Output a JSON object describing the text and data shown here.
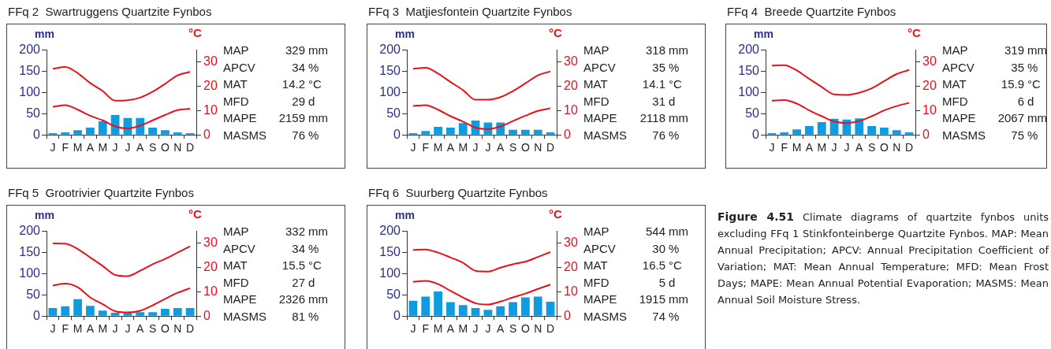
{
  "chart_data": [
    {
      "type": "bar",
      "title": "FFq 2  Swartruggens Quartzite Fynbos",
      "ylabel": "mm",
      "y2label": "°C",
      "categories": [
        "J",
        "F",
        "M",
        "A",
        "M",
        "J",
        "J",
        "A",
        "S",
        "O",
        "N",
        "D"
      ],
      "ylim": [
        0,
        200
      ],
      "yticks": [
        0,
        50,
        100,
        150,
        200
      ],
      "y2lim": [
        0,
        35
      ],
      "y2ticks": [
        0,
        10,
        20,
        30
      ],
      "legend": false,
      "grid": false,
      "series": [
        {
          "type": "bar",
          "color": "#0f9be0",
          "values": [
            4,
            6,
            11,
            17,
            32,
            47,
            40,
            40,
            17,
            11,
            6,
            4
          ]
        },
        {
          "type": "line",
          "axis": "y2",
          "color": "#e8101a",
          "values": [
            27.3,
            28.0,
            25.5,
            21.4,
            18.1,
            14.1,
            14.3,
            15.4,
            17.8,
            21.1,
            24.6,
            26.0
          ]
        },
        {
          "type": "line",
          "axis": "y2",
          "color": "#e8101a",
          "values": [
            11.5,
            12.3,
            10.4,
            7.9,
            6.0,
            3.5,
            2.7,
            3.8,
            6.0,
            8.2,
            10.2,
            10.8
          ]
        }
      ],
      "annotations": [
        "MAP 329 mm",
        "APCV 34 %",
        "MAT 14.2 °C",
        "MFD 29 d",
        "MAPE 2159 mm",
        "MASMS 76 %"
      ]
    },
    {
      "type": "bar",
      "title": "FFq 3  Matjiesfontein Quartzite Fynbos",
      "ylabel": "mm",
      "y2label": "°C",
      "categories": [
        "J",
        "F",
        "M",
        "A",
        "M",
        "J",
        "J",
        "A",
        "S",
        "O",
        "N",
        "D"
      ],
      "ylim": [
        0,
        200
      ],
      "yticks": [
        0,
        50,
        100,
        150,
        200
      ],
      "y2lim": [
        0,
        35
      ],
      "y2ticks": [
        0,
        10,
        20,
        30
      ],
      "legend": false,
      "grid": false,
      "series": [
        {
          "type": "bar",
          "color": "#0f9be0",
          "values": [
            4,
            9,
            19,
            17,
            28,
            34,
            29,
            29,
            12,
            12,
            12,
            6
          ]
        },
        {
          "type": "line",
          "axis": "y2",
          "color": "#e8101a",
          "values": [
            27.3,
            27.7,
            25.3,
            21.8,
            18.5,
            14.5,
            14.5,
            15.6,
            18.1,
            21.3,
            24.6,
            26.2
          ]
        },
        {
          "type": "line",
          "axis": "y2",
          "color": "#e8101a",
          "values": [
            11.9,
            12.3,
            10.4,
            7.7,
            5.5,
            3.0,
            2.4,
            3.5,
            5.7,
            7.9,
            9.9,
            11.0
          ]
        }
      ],
      "annotations": [
        "MAP 318 mm",
        "APCV 35 %",
        "MAT 14.1 °C",
        "MFD 31 d",
        "MAPE 2118 mm",
        "MASMS 76 %"
      ]
    },
    {
      "type": "bar",
      "title": "FFq 4  Breede Quartzite Fynbos",
      "ylabel": "mm",
      "y2label": "°C",
      "categories": [
        "J",
        "F",
        "M",
        "A",
        "M",
        "J",
        "J",
        "A",
        "S",
        "O",
        "N",
        "D"
      ],
      "ylim": [
        0,
        200
      ],
      "yticks": [
        0,
        50,
        100,
        150,
        200
      ],
      "y2lim": [
        0,
        35
      ],
      "y2ticks": [
        0,
        10,
        20,
        30
      ],
      "legend": false,
      "grid": false,
      "series": [
        {
          "type": "bar",
          "color": "#0f9be0",
          "values": [
            4,
            6,
            13,
            21,
            30,
            38,
            36,
            39,
            21,
            17,
            11,
            6
          ]
        },
        {
          "type": "line",
          "axis": "y2",
          "color": "#e8101a",
          "values": [
            28.6,
            28.8,
            26.6,
            23.1,
            19.8,
            16.7,
            16.5,
            17.4,
            19.2,
            22.2,
            25.1,
            26.8
          ]
        },
        {
          "type": "line",
          "axis": "y2",
          "color": "#e8101a",
          "values": [
            14.1,
            14.4,
            12.9,
            10.1,
            7.7,
            5.5,
            4.9,
            5.7,
            7.7,
            10.1,
            11.9,
            13.2
          ]
        }
      ],
      "annotations": [
        "MAP 319 mm",
        "APCV 35 %",
        "MAT 15.9 °C",
        "MFD 6 d",
        "MAPE 2067 mm",
        "MASMS 75 %"
      ]
    },
    {
      "type": "bar",
      "title": "FFq 5  Grootrivier Quartzite Fynbos",
      "ylabel": "mm",
      "y2label": "°C",
      "categories": [
        "J",
        "F",
        "M",
        "A",
        "M",
        "J",
        "J",
        "A",
        "S",
        "O",
        "N",
        "D"
      ],
      "ylim": [
        0,
        200
      ],
      "yticks": [
        0,
        50,
        100,
        150,
        200
      ],
      "y2lim": [
        0,
        35
      ],
      "y2ticks": [
        0,
        10,
        20,
        30
      ],
      "legend": false,
      "grid": false,
      "series": [
        {
          "type": "bar",
          "color": "#0f9be0",
          "values": [
            19,
            23,
            40,
            24,
            13,
            8,
            8,
            9,
            9,
            17,
            19,
            19
          ]
        },
        {
          "type": "line",
          "axis": "y2",
          "color": "#e8101a",
          "values": [
            30.0,
            29.9,
            27.7,
            24.2,
            20.7,
            17.0,
            16.5,
            18.7,
            21.4,
            23.6,
            26.2,
            28.8
          ]
        },
        {
          "type": "line",
          "axis": "y2",
          "color": "#e8101a",
          "values": [
            12.6,
            13.4,
            11.9,
            7.7,
            4.9,
            2.0,
            1.5,
            2.2,
            4.4,
            7.1,
            9.6,
            11.5
          ]
        }
      ],
      "annotations": [
        "MAP 332 mm",
        "APCV 34 %",
        "MAT 15.5 °C",
        "MFD 27 d",
        "MAPE 2326 mm",
        "MASMS 81 %"
      ]
    },
    {
      "type": "bar",
      "title": "FFq 6  Suurberg Quartzite Fynbos",
      "ylabel": "mm",
      "y2label": "°C",
      "categories": [
        "J",
        "F",
        "M",
        "A",
        "M",
        "J",
        "J",
        "A",
        "S",
        "O",
        "N",
        "D"
      ],
      "ylim": [
        0,
        200
      ],
      "yticks": [
        0,
        50,
        100,
        150,
        200
      ],
      "y2lim": [
        0,
        35
      ],
      "y2ticks": [
        0,
        10,
        20,
        30
      ],
      "legend": false,
      "grid": false,
      "series": [
        {
          "type": "bar",
          "color": "#0f9be0",
          "values": [
            36,
            46,
            58,
            33,
            26,
            19,
            15,
            23,
            33,
            44,
            46,
            34
          ]
        },
        {
          "type": "line",
          "axis": "y2",
          "color": "#e8101a",
          "values": [
            27.3,
            27.5,
            26.2,
            24.2,
            22.0,
            18.7,
            18.4,
            20.0,
            21.4,
            22.5,
            24.4,
            26.4
          ]
        },
        {
          "type": "line",
          "axis": "y2",
          "color": "#e8101a",
          "values": [
            14.1,
            14.5,
            13.2,
            10.4,
            7.7,
            5.3,
            4.8,
            6.0,
            7.7,
            9.3,
            11.2,
            13.0
          ]
        }
      ],
      "annotations": [
        "MAP 544 mm",
        "APCV 30 %",
        "MAT 16.5 °C",
        "MFD 5 d",
        "MAPE 1915 mm",
        "MASMS 74 %"
      ]
    },
    {
      "type": "other",
      "title": "Figure 4.51",
      "annotations": [
        "Climate diagrams of quartzite fynbos units excluding FFq 1 Stinkfonteinberge Quartzite Fynbos. MAP: Mean Annual Precipitation; APCV: Annual Precipitation Coefficient of Variation; MAT: Mean Annual Temperature; MFD: Mean Frost Days; MAPE: Mean Annual Potential Evaporation; MASMS: Mean Annual Soil Moisture Stress."
      ]
    }
  ]
}
